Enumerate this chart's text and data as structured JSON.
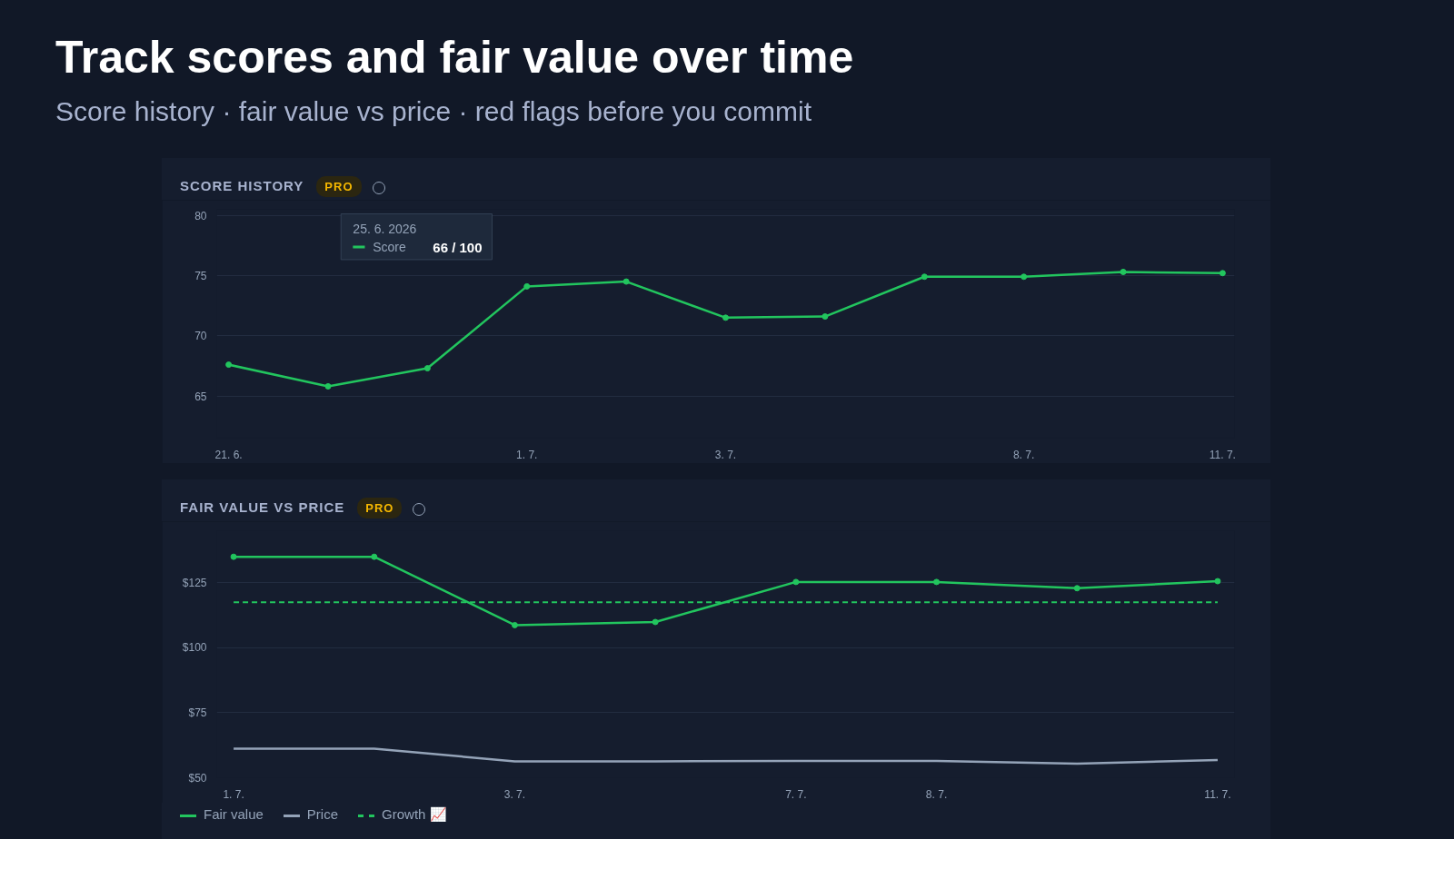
{
  "chart_data": [
    {
      "type": "other",
      "title": "Track scores and fair value over time",
      "subtitle": "Score history · fair value vs price · red flags before you commit"
    },
    {
      "type": "line",
      "title": "SCORE HISTORY",
      "annotations": [
        "PRO",
        "25. 6. 2026",
        "66 / 100"
      ],
      "categories": [
        "21. 6.",
        null,
        null,
        "1. 7.",
        null,
        "3. 7.",
        null,
        null,
        "8. 7.",
        null,
        "11. 7."
      ],
      "series": [
        {
          "name": "Score",
          "color": "#22c55e",
          "values": [
            67.6,
            65.8,
            67.3,
            74.1,
            74.5,
            71.5,
            71.6,
            74.9,
            74.9,
            75.3,
            75.2
          ]
        }
      ],
      "ylim": [
        61.5,
        80.5
      ],
      "yticks": [
        65,
        70,
        75,
        80
      ],
      "grid": "y",
      "marker": "circle"
    },
    {
      "type": "line",
      "title": "FAIR VALUE VS PRICE",
      "annotations": [
        "PRO"
      ],
      "categories": [
        "1. 7.",
        null,
        "3. 7.",
        null,
        "7. 7.",
        "8. 7.",
        null,
        "11. 7."
      ],
      "series": [
        {
          "name": "Fair value",
          "color": "#22c55e",
          "values": [
            135,
            135,
            108.7,
            109.9,
            125.3,
            125.3,
            122.9,
            125.6
          ],
          "marker": "circle"
        },
        {
          "name": "Price",
          "color": "#94a3b8",
          "values": [
            61.2,
            61.2,
            56.3,
            56.3,
            56.5,
            56.5,
            55.4,
            56.8
          ],
          "marker": "none"
        }
      ],
      "ref_lines": [
        {
          "axis": "y",
          "value": 117.5,
          "label": "Growth 📈",
          "color": "#22c55e",
          "line_style": "dashed"
        }
      ],
      "ylim": [
        50,
        145
      ],
      "yticks": [
        {
          "value": 50,
          "label": "$50"
        },
        {
          "value": 75,
          "label": "$75"
        },
        {
          "value": 100,
          "label": "$100"
        },
        {
          "value": 125,
          "label": "$125"
        }
      ],
      "grid": "y",
      "legend": "bottom left"
    }
  ]
}
